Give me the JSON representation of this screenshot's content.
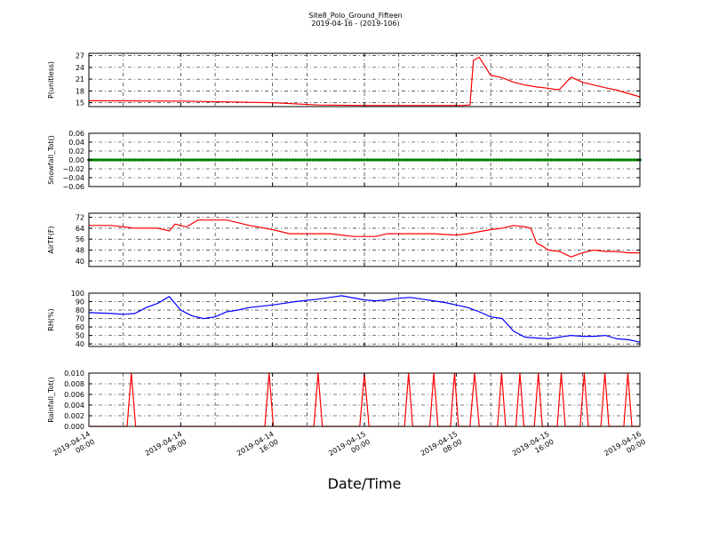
{
  "title": {
    "line1": "Site8_Polo_Ground_Fifteen",
    "line2": "2019-04-16 - (2019-106)"
  },
  "xlabel": "Date/Time",
  "chart_data": [
    {
      "type": "line",
      "ylabel": "P(unitless)",
      "ylim": [
        14,
        27.6
      ],
      "yticks": [
        "15",
        "18",
        "21",
        "24",
        "27"
      ],
      "grid": true,
      "series": [
        {
          "color": "#ff0000",
          "x": [
            0,
            8,
            16,
            20,
            24,
            28,
            30,
            32,
            32.5,
            33.2,
            33.5,
            34,
            35,
            36,
            37,
            38,
            39,
            40,
            40.6,
            41,
            42,
            43,
            44,
            45,
            46,
            48
          ],
          "y": [
            15.5,
            15.4,
            15.0,
            14.4,
            14.3,
            14.3,
            14.3,
            14.3,
            14.3,
            14.4,
            25.8,
            26.6,
            22.0,
            21.4,
            20.2,
            19.5,
            19.0,
            18.7,
            18.4,
            18.4,
            21.5,
            20.2,
            19.5,
            18.8,
            18.2,
            16.5
          ]
        }
      ]
    },
    {
      "type": "line",
      "ylabel": "Snowfall_Tot()",
      "ylim": [
        -0.06,
        0.06
      ],
      "yticks": [
        "−0.06",
        "−0.04",
        "−0.02",
        "0.00",
        "0.02",
        "0.04",
        "0.06"
      ],
      "grid": true,
      "series": [
        {
          "color": "#008000",
          "markers": true,
          "x": [
            0,
            48
          ],
          "y": [
            0,
            0
          ]
        }
      ]
    },
    {
      "type": "line",
      "ylabel": "AirTF(F)",
      "ylim": [
        36,
        75
      ],
      "yticks": [
        "40",
        "48",
        "56",
        "64",
        "72"
      ],
      "grid": true,
      "series": [
        {
          "color": "#ff0000",
          "x": [
            0,
            2,
            4,
            6,
            7,
            7.5,
            8.5,
            9.5,
            10,
            12,
            14,
            16,
            17.5,
            19,
            20,
            21,
            22,
            23,
            24,
            25,
            26,
            28,
            30,
            32,
            33,
            35,
            36,
            37,
            38,
            38.5,
            39,
            39.5,
            40,
            41,
            42,
            43,
            44,
            45,
            46,
            47,
            48
          ],
          "y": [
            66,
            66,
            64,
            64,
            62,
            67,
            65,
            70,
            70,
            70,
            66,
            63,
            60,
            60,
            60,
            60,
            59,
            58,
            58,
            58,
            60,
            60,
            60,
            59,
            60,
            63,
            64,
            66,
            65,
            64,
            53,
            51,
            48,
            47,
            43,
            46,
            48,
            47,
            47,
            46,
            46
          ]
        }
      ]
    },
    {
      "type": "line",
      "ylabel": "RH(%)",
      "ylim": [
        37,
        100
      ],
      "yticks": [
        "40",
        "50",
        "60",
        "70",
        "80",
        "90",
        "100"
      ],
      "grid": true,
      "series": [
        {
          "color": "#0000ff",
          "x": [
            0,
            2,
            3,
            4,
            5,
            6,
            7,
            8,
            9,
            10,
            11,
            12,
            13,
            14,
            16,
            18,
            20,
            21,
            22,
            24,
            25,
            26,
            27,
            28,
            29,
            30,
            31,
            32,
            33,
            34,
            35,
            36,
            37,
            38,
            39,
            40,
            41,
            42,
            43,
            44,
            45,
            46,
            47,
            48
          ],
          "y": [
            77,
            76,
            75,
            76,
            83,
            88,
            96,
            80,
            73,
            70,
            72,
            78,
            80,
            83,
            86,
            90,
            93,
            95,
            97,
            92,
            91,
            92,
            94,
            95,
            93,
            91,
            89,
            86,
            83,
            78,
            72,
            70,
            55,
            48,
            47,
            46,
            48,
            50,
            49,
            49,
            50,
            46,
            45,
            42
          ]
        }
      ]
    },
    {
      "type": "line",
      "ylabel": "Rainfall_Tot()",
      "ylim": [
        0,
        0.01
      ],
      "yticks": [
        "0.000",
        "0.002",
        "0.004",
        "0.006",
        "0.008",
        "0.010"
      ],
      "grid": true,
      "series": [
        {
          "color": "#ff0000",
          "x": [
            0,
            3.33,
            3.7,
            4.07,
            15.33,
            15.7,
            16.07,
            19.6,
            19.97,
            20.34,
            23.6,
            24.0,
            24.4,
            27.5,
            27.85,
            28.2,
            29.7,
            30.05,
            30.4,
            31.5,
            31.85,
            32.2,
            33.2,
            33.6,
            34.0,
            35.6,
            35.95,
            36.3,
            37.2,
            37.55,
            37.9,
            38.8,
            39.15,
            39.5,
            40.8,
            41.15,
            41.5,
            42.8,
            43.15,
            43.5,
            44.6,
            44.95,
            45.3,
            46.6,
            46.95,
            47.3,
            48
          ],
          "y": [
            0,
            0,
            0.01,
            0,
            0,
            0.01,
            0,
            0,
            0.01,
            0,
            0,
            0.01,
            0,
            0,
            0.01,
            0,
            0,
            0.01,
            0,
            0,
            0.01,
            0,
            0,
            0.01,
            0,
            0,
            0.01,
            0,
            0,
            0.01,
            0,
            0,
            0.01,
            0,
            0,
            0.01,
            0,
            0,
            0.01,
            0,
            0,
            0.01,
            0,
            0,
            0.01,
            0,
            0
          ]
        }
      ]
    }
  ],
  "xaxis": {
    "range_hours": [
      0,
      48
    ],
    "ticks": [
      {
        "hours": 0,
        "line1": "2019-04-14",
        "line2": "00:00"
      },
      {
        "hours": 8,
        "line1": "2019-04-14",
        "line2": "08:00"
      },
      {
        "hours": 16,
        "line1": "2019-04-14",
        "line2": "16:00"
      },
      {
        "hours": 24,
        "line1": "2019-04-15",
        "line2": "00:00"
      },
      {
        "hours": 32,
        "line1": "2019-04-15",
        "line2": "08:00"
      },
      {
        "hours": 40,
        "line1": "2019-04-15",
        "line2": "16:00"
      },
      {
        "hours": 48,
        "line1": "2019-04-16",
        "line2": "00:00"
      }
    ]
  }
}
